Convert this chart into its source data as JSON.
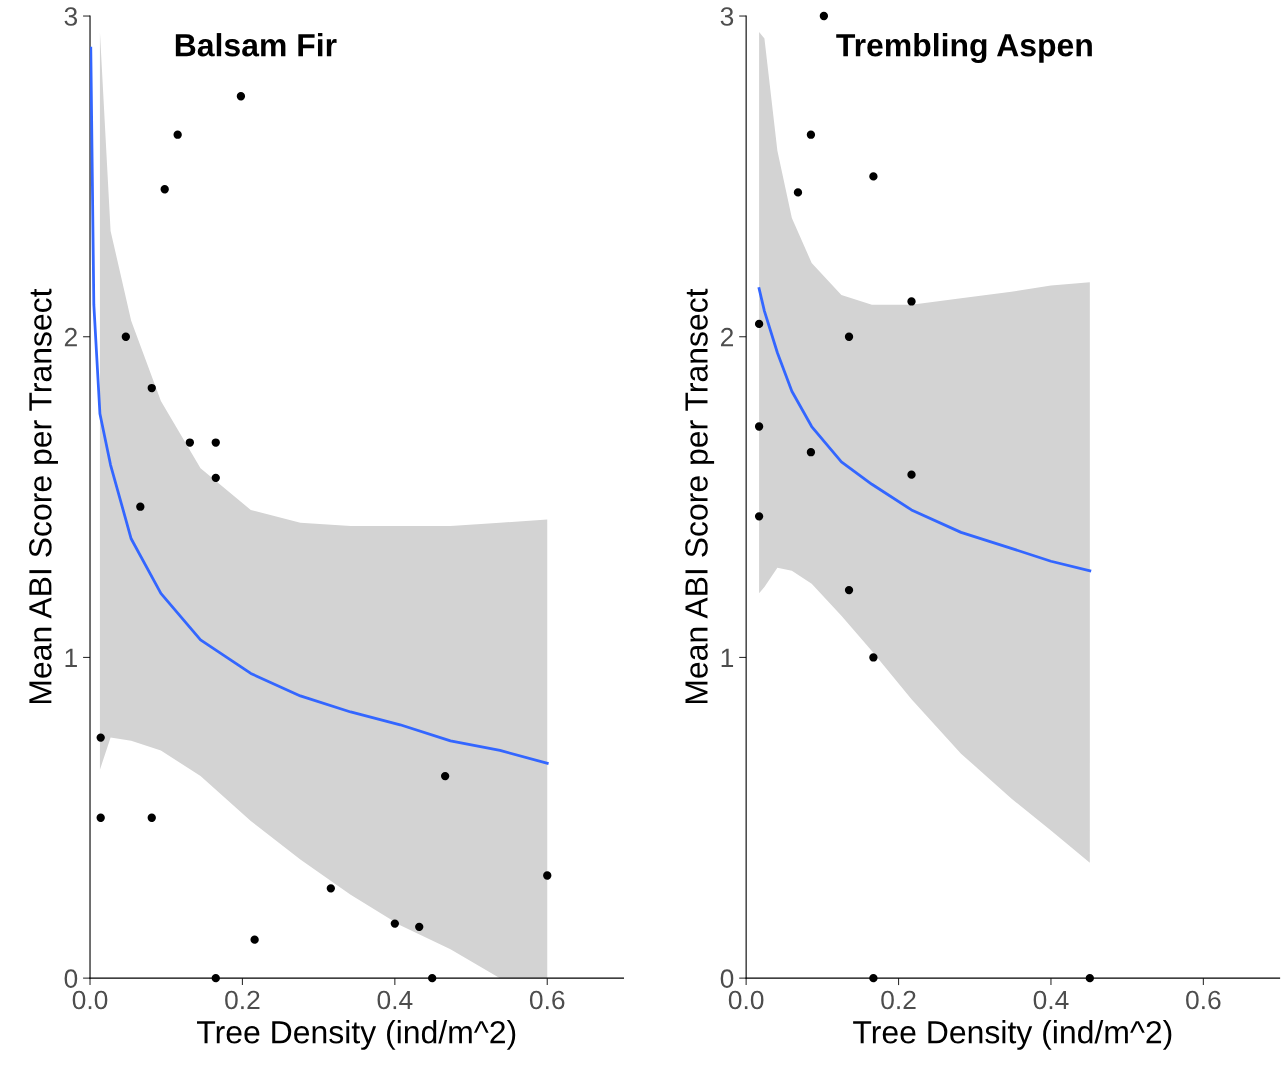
{
  "chart_data": [
    {
      "type": "scatter",
      "title": "Balsam Fir",
      "xlabel": "Tree Density (ind/m^2)",
      "ylabel": "Mean ABI Score per Transect",
      "xlim": [
        0,
        0.7
      ],
      "ylim": [
        0,
        3
      ],
      "xticks": [
        {
          "value": 0,
          "label": "0.0"
        },
        {
          "value": 0.2,
          "label": "0.2"
        },
        {
          "value": 0.4,
          "label": "0.4"
        },
        {
          "value": 0.6,
          "label": "0.6"
        }
      ],
      "yticks": [
        0,
        1,
        2,
        3
      ],
      "grid": false,
      "series": [
        {
          "color": "#000000",
          "x": [
            0.014,
            0.014,
            0.047,
            0.081,
            0.081,
            0.066,
            0.098,
            0.115,
            0.131,
            0.165,
            0.165,
            0.165,
            0.198,
            0.216,
            0.316,
            0.4,
            0.432,
            0.449,
            0.466,
            0.6
          ],
          "values": [
            0.75,
            0.5,
            2.0,
            1.84,
            0.5,
            1.47,
            2.46,
            2.63,
            1.67,
            1.67,
            1.56,
            0,
            2.75,
            0.12,
            0.28,
            0.17,
            0.16,
            0,
            0.63,
            0.32
          ]
        },
        {
          "type": "line",
          "color": "#3366ff",
          "x": [
            0.001,
            0.005,
            0.013,
            0.027,
            0.054,
            0.093,
            0.145,
            0.211,
            0.276,
            0.342,
            0.407,
            0.473,
            0.538,
            0.6
          ],
          "values": [
            2.9,
            2.1,
            1.76,
            1.6,
            1.37,
            1.2,
            1.055,
            0.95,
            0.88,
            0.83,
            0.79,
            0.74,
            0.71,
            0.67
          ],
          "lower": [
            null,
            null,
            0.65,
            0.75,
            0.74,
            0.71,
            0.63,
            0.49,
            0.37,
            0.26,
            0.165,
            0.09,
            0,
            0
          ],
          "upper": [
            null,
            null,
            2.95,
            2.33,
            2.05,
            1.8,
            1.59,
            1.46,
            1.42,
            1.41,
            1.41,
            1.41,
            1.42,
            1.43
          ]
        }
      ]
    },
    {
      "type": "scatter",
      "title": "Trembling Aspen",
      "xlabel": "Tree Density (ind/m^2)",
      "ylabel": "Mean ABI Score per Transect",
      "xlim": [
        0,
        0.7
      ],
      "ylim": [
        0,
        3
      ],
      "xticks": [
        {
          "value": 0,
          "label": "0.0"
        },
        {
          "value": 0.2,
          "label": "0.2"
        },
        {
          "value": 0.4,
          "label": "0.4"
        },
        {
          "value": 0.6,
          "label": "0.6"
        }
      ],
      "yticks": [
        0,
        1,
        2,
        3
      ],
      "grid": false,
      "series": [
        {
          "color": "#000000",
          "x": [
            0.017,
            0.017,
            0.017,
            0.068,
            0.085,
            0.085,
            0.102,
            0.135,
            0.135,
            0.167,
            0.167,
            0.167,
            0.217,
            0.217,
            0.451
          ],
          "values": [
            2.04,
            1.72,
            1.44,
            2.45,
            2.63,
            1.64,
            3.0,
            2.0,
            1.21,
            2.5,
            1.0,
            0,
            2.11,
            1.57,
            0
          ]
        },
        {
          "type": "line",
          "color": "#3366ff",
          "x": [
            0.017,
            0.024,
            0.041,
            0.06,
            0.086,
            0.125,
            0.165,
            0.217,
            0.282,
            0.348,
            0.4,
            0.451
          ],
          "values": [
            2.15,
            2.08,
            1.95,
            1.83,
            1.72,
            1.61,
            1.54,
            1.46,
            1.39,
            1.34,
            1.3,
            1.27
          ],
          "lower": [
            1.2,
            1.22,
            1.28,
            1.27,
            1.23,
            1.13,
            1.02,
            0.87,
            0.7,
            0.56,
            0.46,
            0.36
          ],
          "upper": [
            2.95,
            2.93,
            2.58,
            2.37,
            2.23,
            2.13,
            2.1,
            2.1,
            2.12,
            2.14,
            2.16,
            2.17
          ]
        }
      ]
    }
  ]
}
